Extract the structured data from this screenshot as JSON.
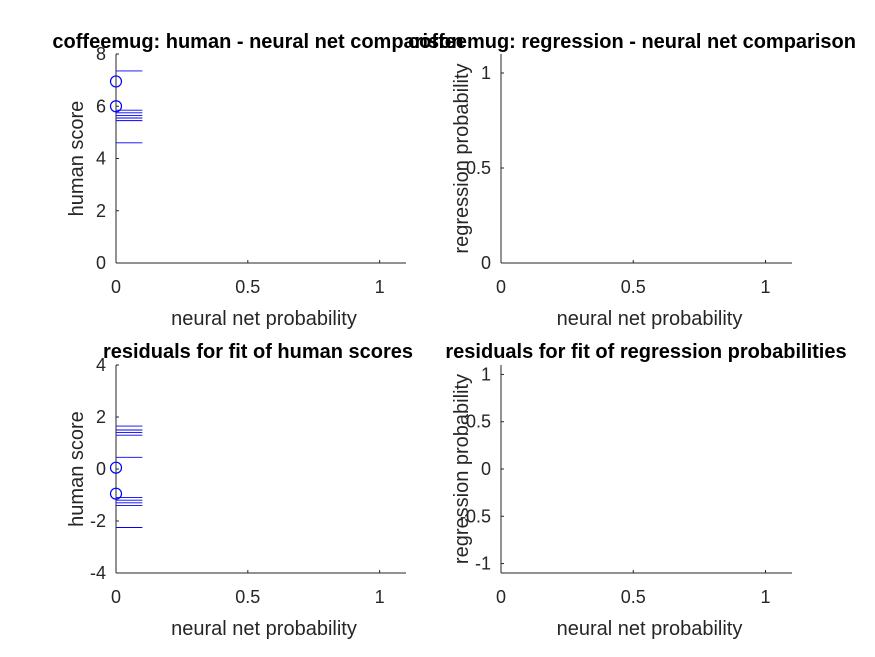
{
  "chart_data": [
    {
      "type": "scatter",
      "title": "coffeemug: human - neural net comparison",
      "xlabel": "neural net probability",
      "ylabel": "human score",
      "xlim": [
        0,
        1.1
      ],
      "ylim": [
        0,
        8
      ],
      "xticks": [
        0,
        0.5,
        1
      ],
      "yticks": [
        0,
        2,
        4,
        6,
        8
      ],
      "xtick_labels": [
        "0",
        "0.5",
        "1"
      ],
      "ytick_labels": [
        "0",
        "2",
        "4",
        "6",
        "8"
      ],
      "series": [
        {
          "kind": "points",
          "x": [
            0.0,
            0.0
          ],
          "y": [
            6.95,
            6.0
          ],
          "color": "#0000ff"
        },
        {
          "kind": "hlines",
          "x_start": 0.0,
          "x_end": 0.1,
          "y": [
            7.35,
            5.85,
            5.75,
            5.65,
            5.55,
            5.45,
            4.6
          ],
          "color": "#0000ff"
        }
      ]
    },
    {
      "type": "scatter",
      "title": "coffeemug: regression - neural net comparison",
      "xlabel": "neural net probability",
      "ylabel": "regression probability",
      "xlim": [
        0,
        1.1
      ],
      "ylim": [
        0,
        1.1
      ],
      "xticks": [
        0,
        0.5,
        1
      ],
      "yticks": [
        0,
        0.5,
        1
      ],
      "xtick_labels": [
        "0",
        "0.5",
        "1"
      ],
      "ytick_labels": [
        "0",
        "0.5",
        "1"
      ],
      "series": []
    },
    {
      "type": "scatter",
      "title": "residuals for fit of human scores",
      "xlabel": "neural net probability",
      "ylabel": "human score",
      "xlim": [
        0,
        1.1
      ],
      "ylim": [
        -4,
        4
      ],
      "xticks": [
        0,
        0.5,
        1
      ],
      "yticks": [
        -4,
        -2,
        0,
        2,
        4
      ],
      "xtick_labels": [
        "0",
        "0.5",
        "1"
      ],
      "ytick_labels": [
        "-4",
        "-2",
        "0",
        "2",
        "4"
      ],
      "series": [
        {
          "kind": "points",
          "x": [
            0.0,
            0.0
          ],
          "y": [
            0.05,
            -0.95
          ],
          "color": "#0000ff"
        },
        {
          "kind": "hlines",
          "x_start": 0.0,
          "x_end": 0.1,
          "y": [
            1.65,
            1.5,
            1.4,
            1.3,
            0.45,
            -1.1,
            -1.2,
            -1.3,
            -1.4,
            -2.25
          ],
          "color": "#0000ff"
        }
      ]
    },
    {
      "type": "scatter",
      "title": "residuals for fit of regression probabilities",
      "xlabel": "neural net probability",
      "ylabel": "regression probability",
      "xlim": [
        0,
        1.1
      ],
      "ylim": [
        -1.1,
        1.1
      ],
      "xticks": [
        0,
        0.5,
        1
      ],
      "yticks": [
        -1,
        -0.5,
        0,
        0.5,
        1
      ],
      "xtick_labels": [
        "0",
        "0.5",
        "1"
      ],
      "ytick_labels": [
        "-1",
        "-0.5",
        "0",
        "0.5",
        "1"
      ],
      "series": []
    }
  ]
}
